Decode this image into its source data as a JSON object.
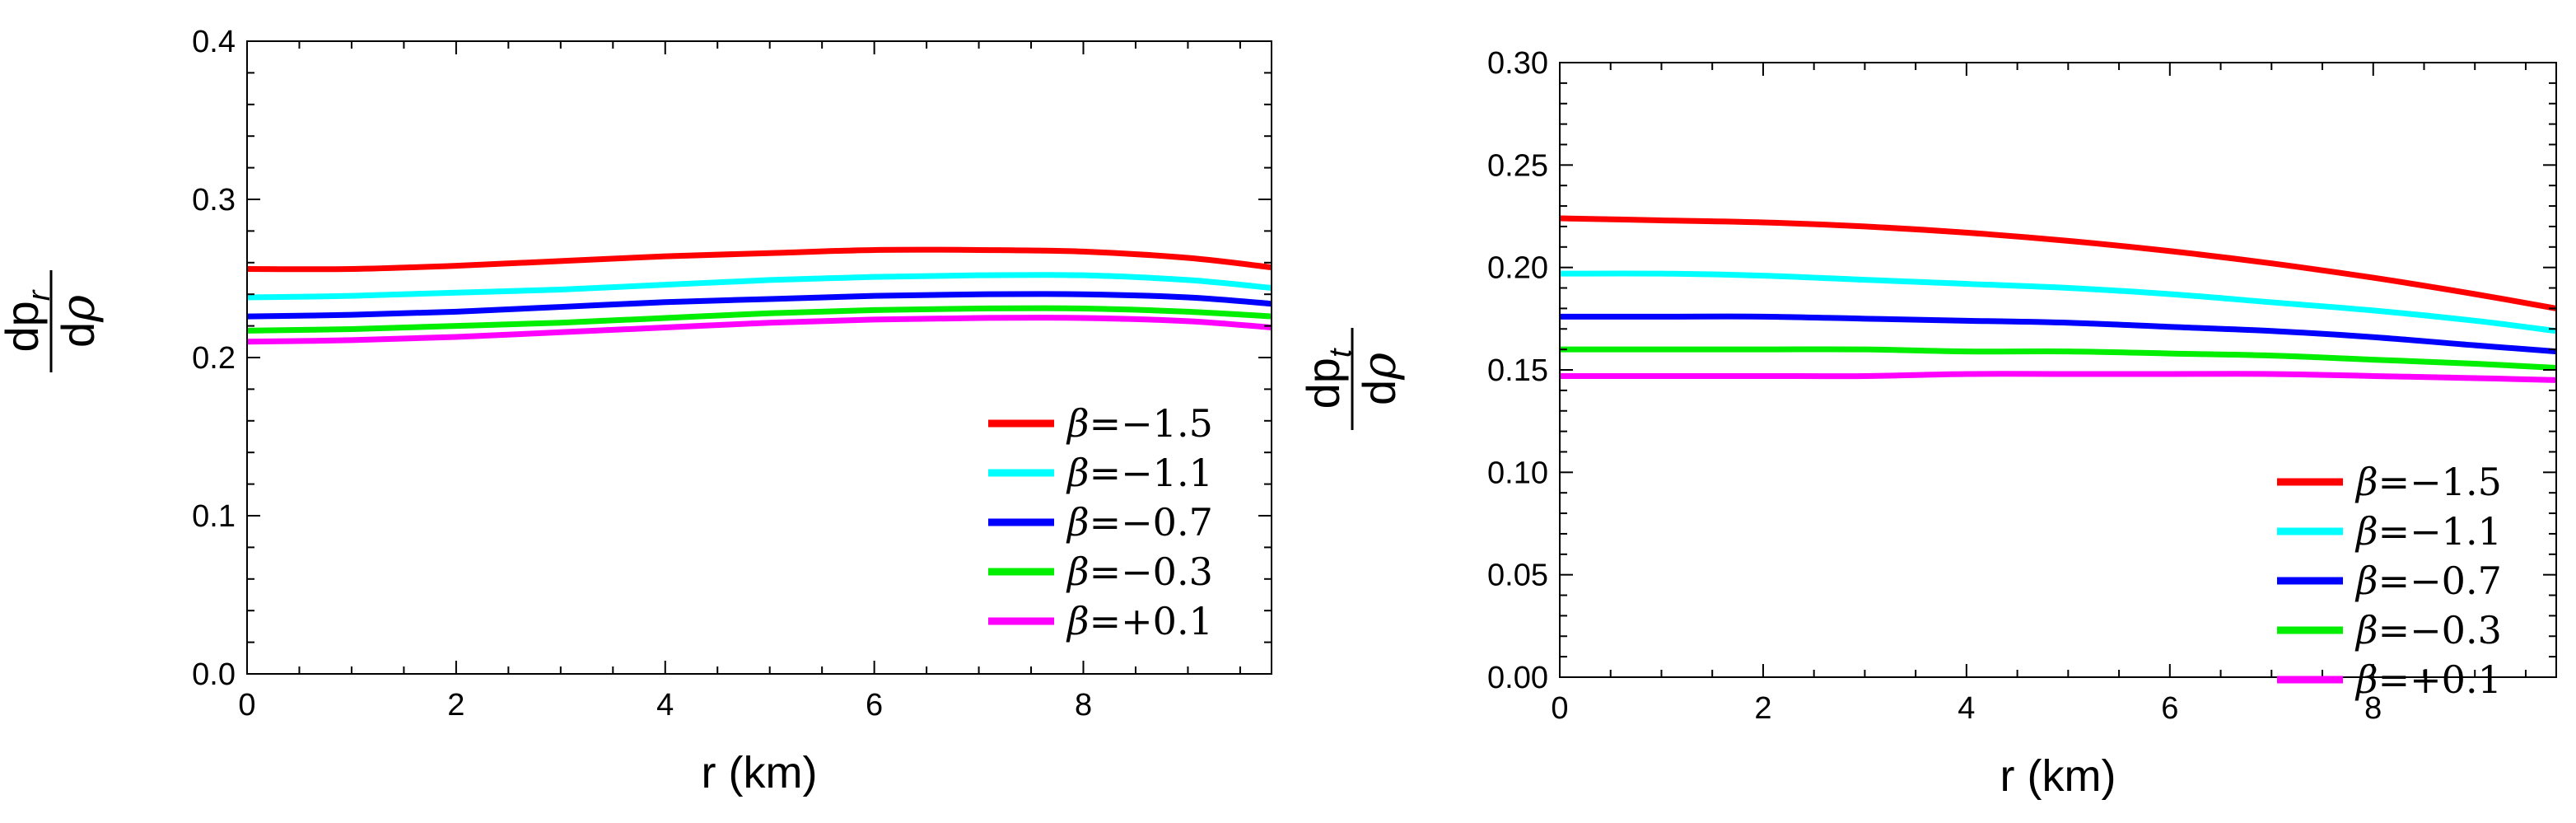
{
  "chart_data": [
    {
      "type": "line",
      "title": "",
      "xlabel": "r (km)",
      "ylabel": {
        "numerator_main": "dp",
        "numerator_sub": "r",
        "denominator_main": "d",
        "denominator_symbol": "ρ"
      },
      "xlim": [
        0,
        9.8
      ],
      "ylim": [
        0.0,
        0.4
      ],
      "xticks": [
        0,
        2,
        4,
        6,
        8
      ],
      "xtick_labels": [
        "0",
        "2",
        "4",
        "6",
        "8"
      ],
      "yticks": [
        0.0,
        0.1,
        0.2,
        0.3,
        0.4
      ],
      "ytick_labels": [
        "0.0",
        "0.1",
        "0.2",
        "0.3",
        "0.4"
      ],
      "legend_position": "bottom-right",
      "x": [
        0,
        1,
        2,
        3,
        4,
        5,
        6,
        7,
        8,
        9,
        9.8
      ],
      "series": [
        {
          "name": "β=−1.5",
          "symbol": "β",
          "value_text": "=−1.5",
          "color": "#ff0000",
          "values": [
            0.256,
            0.256,
            0.258,
            0.261,
            0.264,
            0.266,
            0.268,
            0.268,
            0.267,
            0.263,
            0.257
          ]
        },
        {
          "name": "β=−1.1",
          "symbol": "β",
          "value_text": "=−1.1",
          "color": "#00ffff",
          "values": [
            0.238,
            0.239,
            0.241,
            0.243,
            0.246,
            0.249,
            0.251,
            0.252,
            0.252,
            0.249,
            0.244
          ]
        },
        {
          "name": "β=−0.7",
          "symbol": "β",
          "value_text": "=−0.7",
          "color": "#0000ff",
          "values": [
            0.226,
            0.227,
            0.229,
            0.232,
            0.235,
            0.237,
            0.239,
            0.24,
            0.24,
            0.238,
            0.234
          ]
        },
        {
          "name": "β=−0.3",
          "symbol": "β",
          "value_text": "=−0.3",
          "color": "#00ee00",
          "values": [
            0.217,
            0.218,
            0.22,
            0.222,
            0.225,
            0.228,
            0.23,
            0.231,
            0.231,
            0.229,
            0.226
          ]
        },
        {
          "name": "β=+0.1",
          "symbol": "β",
          "value_text": "=+0.1",
          "color": "#ff00ff",
          "values": [
            0.21,
            0.211,
            0.213,
            0.216,
            0.219,
            0.222,
            0.224,
            0.225,
            0.225,
            0.223,
            0.219
          ]
        }
      ]
    },
    {
      "type": "line",
      "title": "",
      "xlabel": "r (km)",
      "ylabel": {
        "numerator_main": "dp",
        "numerator_sub": "t",
        "denominator_main": "d",
        "denominator_symbol": "ρ"
      },
      "xlim": [
        0,
        9.8
      ],
      "ylim": [
        0.0,
        0.3
      ],
      "xticks": [
        0,
        2,
        4,
        6,
        8
      ],
      "xtick_labels": [
        "0",
        "2",
        "4",
        "6",
        "8"
      ],
      "yticks": [
        0.0,
        0.05,
        0.1,
        0.15,
        0.2,
        0.25,
        0.3
      ],
      "ytick_labels": [
        "0.00",
        "0.05",
        "0.10",
        "0.15",
        "0.20",
        "0.25",
        "0.30"
      ],
      "legend_position": "bottom-right",
      "x": [
        0,
        1,
        2,
        3,
        4,
        5,
        6,
        7,
        8,
        9,
        9.8
      ],
      "series": [
        {
          "name": "β=−1.5",
          "symbol": "β",
          "value_text": "=−1.5",
          "color": "#ff0000",
          "values": [
            0.224,
            0.223,
            0.222,
            0.22,
            0.217,
            0.213,
            0.208,
            0.202,
            0.195,
            0.187,
            0.18
          ]
        },
        {
          "name": "β=−1.1",
          "symbol": "β",
          "value_text": "=−1.1",
          "color": "#00ffff",
          "values": [
            0.197,
            0.197,
            0.196,
            0.194,
            0.192,
            0.19,
            0.187,
            0.183,
            0.179,
            0.174,
            0.169
          ]
        },
        {
          "name": "β=−0.7",
          "symbol": "β",
          "value_text": "=−0.7",
          "color": "#0000ff",
          "values": [
            0.176,
            0.176,
            0.176,
            0.175,
            0.174,
            0.173,
            0.171,
            0.169,
            0.166,
            0.162,
            0.159
          ]
        },
        {
          "name": "β=−0.3",
          "symbol": "β",
          "value_text": "=−0.3",
          "color": "#00ee00",
          "values": [
            0.16,
            0.16,
            0.16,
            0.16,
            0.159,
            0.159,
            0.158,
            0.157,
            0.155,
            0.153,
            0.151
          ]
        },
        {
          "name": "β=+0.1",
          "symbol": "β",
          "value_text": "=+0.1",
          "color": "#ff00ff",
          "values": [
            0.147,
            0.147,
            0.147,
            0.147,
            0.148,
            0.148,
            0.148,
            0.148,
            0.147,
            0.146,
            0.145
          ]
        }
      ]
    }
  ]
}
